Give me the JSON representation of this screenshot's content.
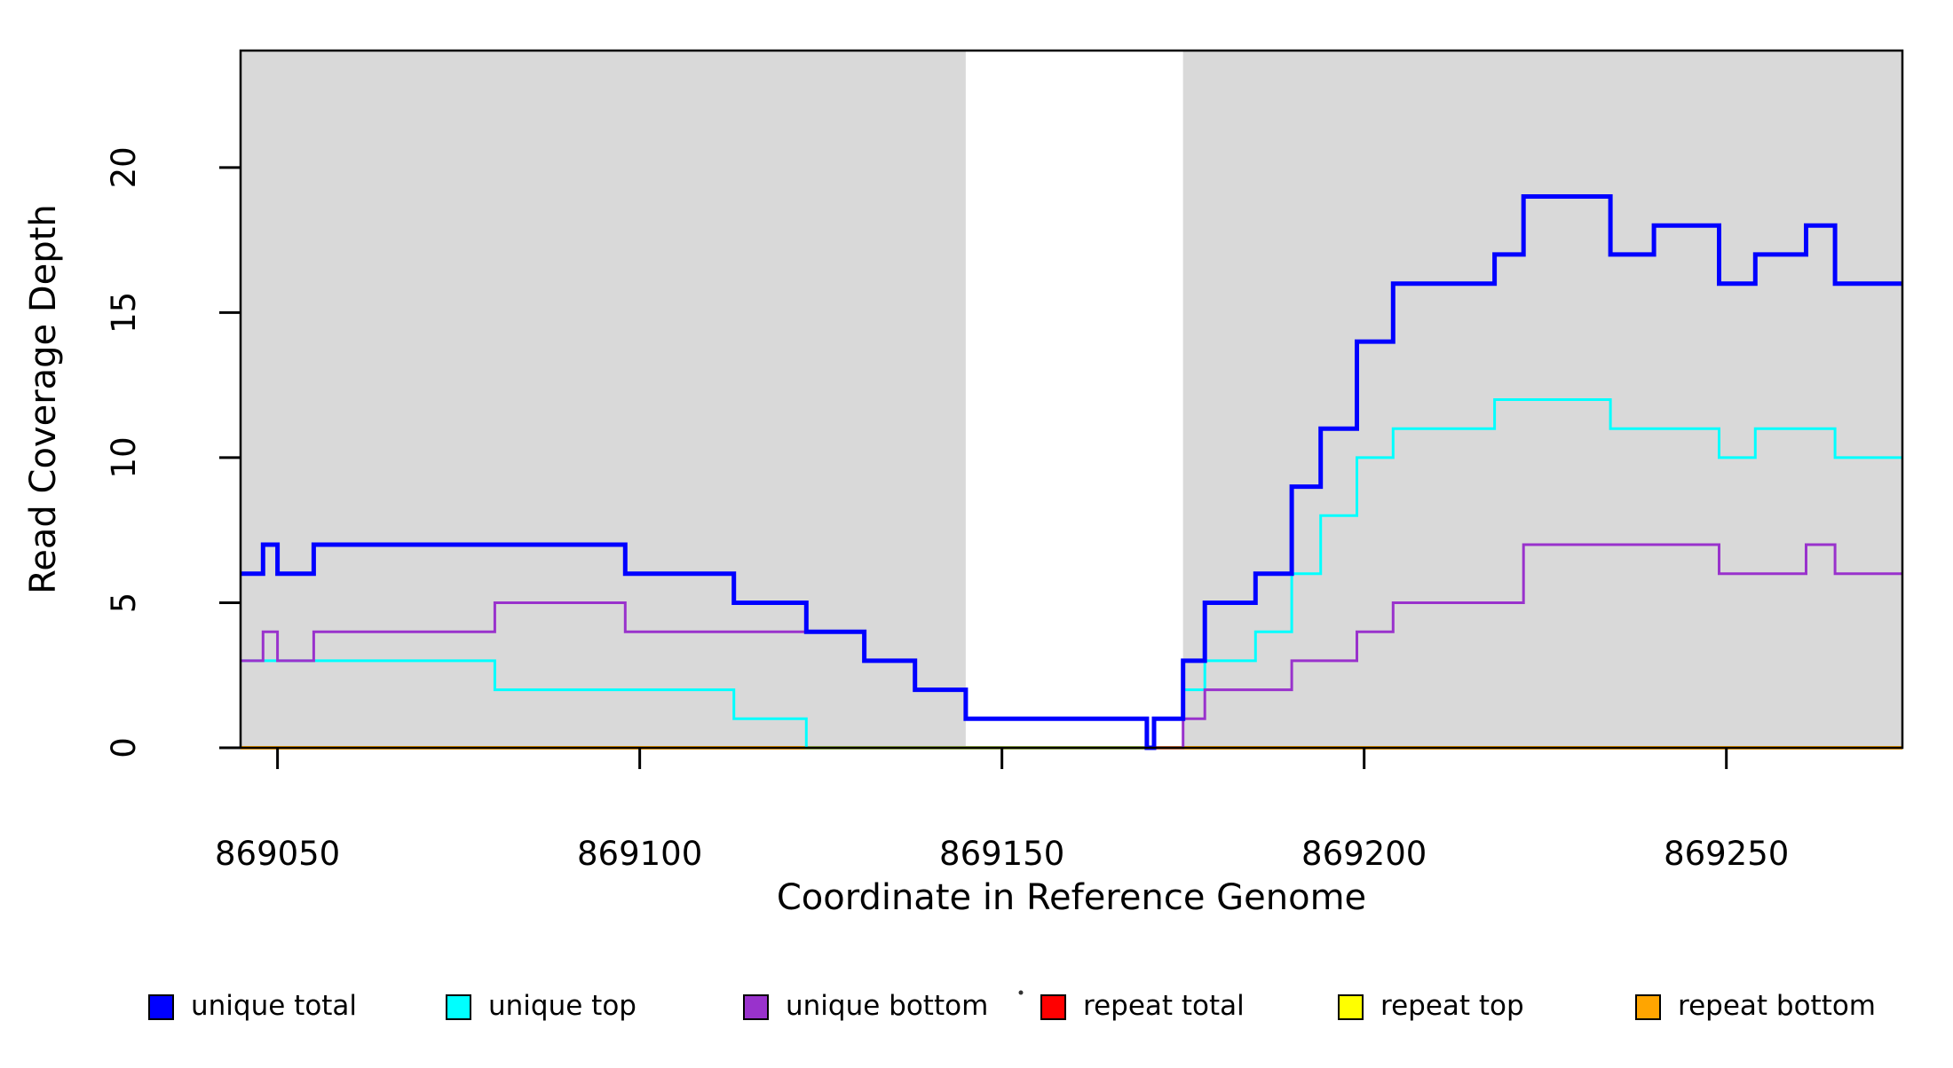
{
  "chart_data": {
    "type": "line",
    "subtype": "step",
    "title": "",
    "xlabel": "Coordinate in Reference Genome",
    "ylabel": "Read Coverage Depth",
    "xlim": [
      869044.9,
      869274.3
    ],
    "ylim": [
      0,
      24.03
    ],
    "x_ticks": [
      869050,
      869100,
      869150,
      869200,
      869250
    ],
    "y_ticks": [
      0,
      5,
      10,
      15,
      20
    ],
    "grid": false,
    "panel_background": "#ffffff",
    "shaded_regions": [
      {
        "x0": 869044.9,
        "x1": 869145,
        "color": "#D9D9D9"
      },
      {
        "x0": 869175,
        "x1": 869274.3,
        "color": "#D9D9D9"
      }
    ],
    "series": [
      {
        "name": "repeat total",
        "color": "#FF0000",
        "width": 3,
        "points": [
          [
            869044.9,
            0
          ],
          [
            869274.3,
            0
          ]
        ]
      },
      {
        "name": "repeat top",
        "color": "#FFFF00",
        "width": 3,
        "points": [
          [
            869044.9,
            0
          ],
          [
            869274.3,
            0
          ]
        ]
      },
      {
        "name": "repeat bottom",
        "color": "#FFA500",
        "width": 4,
        "points": [
          [
            869044.9,
            0
          ],
          [
            869274.3,
            0
          ]
        ]
      },
      {
        "name": "unique top",
        "color": "#00FFFF",
        "width": 3,
        "points": [
          [
            869044.9,
            3
          ],
          [
            869080,
            2
          ],
          [
            869113,
            1
          ],
          [
            869123,
            0
          ],
          [
            869171,
            1
          ],
          [
            869175,
            2
          ],
          [
            869178,
            3
          ],
          [
            869185,
            4
          ],
          [
            869190,
            6
          ],
          [
            869194,
            8
          ],
          [
            869199,
            10
          ],
          [
            869204,
            11
          ],
          [
            869218,
            12
          ],
          [
            869234,
            11
          ],
          [
            869249,
            10
          ],
          [
            869254,
            11
          ],
          [
            869265,
            10
          ],
          [
            869274.3,
            10
          ]
        ]
      },
      {
        "name": "unique bottom",
        "color": "#9932CC",
        "width": 3,
        "points": [
          [
            869044.9,
            3
          ],
          [
            869048,
            4
          ],
          [
            869050,
            3
          ],
          [
            869055,
            4
          ],
          [
            869080,
            5
          ],
          [
            869098,
            4
          ],
          [
            869131,
            3
          ],
          [
            869138,
            2
          ],
          [
            869145,
            1
          ],
          [
            869170,
            0
          ],
          [
            869175,
            1
          ],
          [
            869178,
            2
          ],
          [
            869190,
            3
          ],
          [
            869199,
            4
          ],
          [
            869204,
            5
          ],
          [
            869222,
            7
          ],
          [
            869249,
            6
          ],
          [
            869261,
            7
          ],
          [
            869265,
            6
          ],
          [
            869274.3,
            6
          ]
        ]
      },
      {
        "name": "unique total",
        "color": "#0000FF",
        "width": 5,
        "points": [
          [
            869044.9,
            6
          ],
          [
            869048,
            7
          ],
          [
            869050,
            6
          ],
          [
            869055,
            7
          ],
          [
            869098,
            6
          ],
          [
            869113,
            5
          ],
          [
            869123,
            4
          ],
          [
            869131,
            3
          ],
          [
            869138,
            2
          ],
          [
            869145,
            1
          ],
          [
            869170,
            0
          ],
          [
            869171,
            1
          ],
          [
            869175,
            3
          ],
          [
            869178,
            5
          ],
          [
            869185,
            6
          ],
          [
            869190,
            9
          ],
          [
            869194,
            11
          ],
          [
            869199,
            14
          ],
          [
            869204,
            16
          ],
          [
            869218,
            17
          ],
          [
            869222,
            19
          ],
          [
            869234,
            17
          ],
          [
            869240,
            18
          ],
          [
            869249,
            16
          ],
          [
            869254,
            17
          ],
          [
            869261,
            18
          ],
          [
            869265,
            16
          ],
          [
            869274.3,
            16
          ]
        ]
      }
    ],
    "legend_position": "bottom",
    "legend": [
      {
        "label": "unique total",
        "color": "#0000FF"
      },
      {
        "label": "unique top",
        "color": "#00FFFF"
      },
      {
        "label": "unique bottom",
        "color": "#9932CC"
      },
      {
        "label": "repeat total",
        "color": "#FF0000"
      },
      {
        "label": "repeat top",
        "color": "#FFFF00"
      },
      {
        "label": "repeat bottom",
        "color": "#FFA500"
      }
    ]
  },
  "axes": {
    "x_label": "Coordinate in Reference Genome",
    "y_label": "Read Coverage Depth",
    "x_tick_labels": [
      "869050",
      "869100",
      "869150",
      "869200",
      "869250"
    ],
    "y_tick_labels": [
      "0",
      "5",
      "10",
      "15",
      "20"
    ]
  },
  "colors": {
    "axis": "#000000",
    "panel_shading": "#D9D9D9",
    "background": "#ffffff",
    "artifact_dot": "#333333"
  }
}
